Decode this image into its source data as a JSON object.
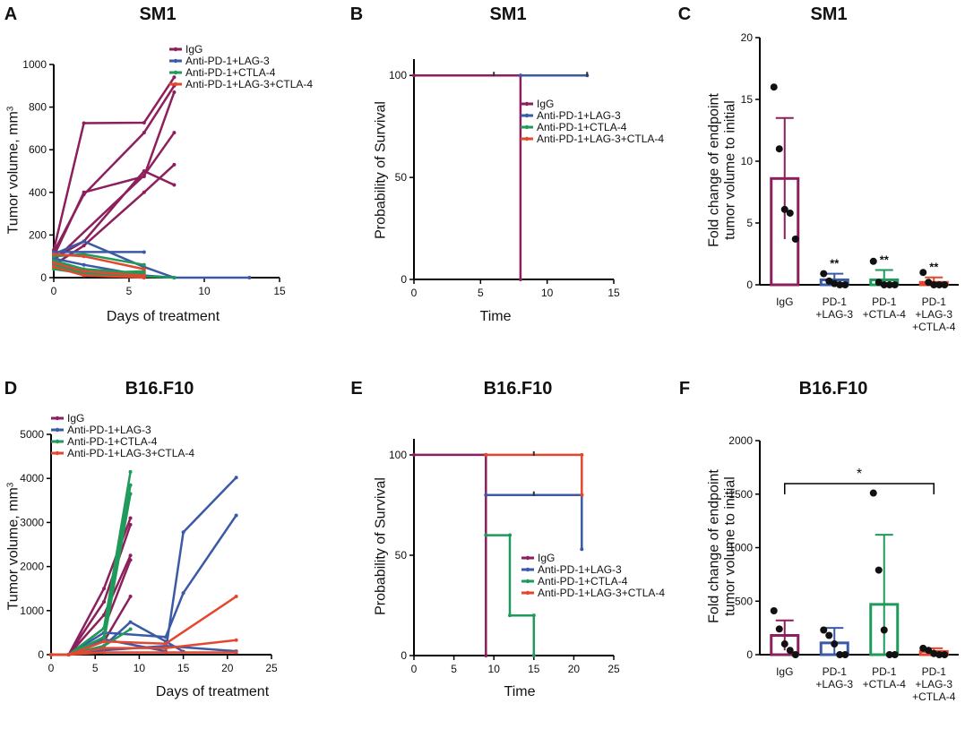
{
  "colors": {
    "igg": "#8c1f5c",
    "lag3": "#3b5aa6",
    "ctla4": "#1f9a5b",
    "combo": "#e4472f",
    "axis": "#000000"
  },
  "legend_labels": [
    "IgG",
    "Anti-PD-1+LAG-3",
    "Anti-PD-1+CTLA-4",
    "Anti-PD-1+LAG-3+CTLA-4"
  ],
  "chart_data": [
    {
      "id": "A",
      "letter": "A",
      "type": "line",
      "title": "SM1",
      "xlabel": "Days of treatment",
      "ylabel": "Tumor volume, mm",
      "ylabel_sup": "3",
      "xlim": [
        0,
        15
      ],
      "ylim": [
        0,
        1000
      ],
      "xticks": [
        0,
        5,
        10,
        15
      ],
      "yticks": [
        0,
        200,
        400,
        600,
        800,
        1000
      ],
      "series": [
        {
          "name": "IgG",
          "color_key": "igg",
          "lines": [
            [
              [
                0,
                130
              ],
              [
                2,
                725
              ],
              [
                6,
                727
              ],
              [
                8,
                940
              ]
            ],
            [
              [
                0,
                120
              ],
              [
                2,
                390
              ],
              [
                6,
                680
              ],
              [
                8,
                900
              ]
            ],
            [
              [
                0,
                100
              ],
              [
                2,
                400
              ],
              [
                6,
                475
              ],
              [
                8,
                870
              ]
            ],
            [
              [
                0,
                90
              ],
              [
                2,
                170
              ],
              [
                6,
                500
              ],
              [
                8,
                435
              ]
            ],
            [
              [
                0,
                60
              ],
              [
                2,
                150
              ],
              [
                6,
                400
              ],
              [
                8,
                530
              ]
            ],
            [
              [
                0,
                80
              ],
              [
                6,
                480
              ],
              [
                8,
                680
              ]
            ]
          ]
        },
        {
          "name": "Anti-PD-1+LAG-3",
          "color_key": "lag3",
          "lines": [
            [
              [
                0,
                120
              ],
              [
                6,
                120
              ]
            ],
            [
              [
                0,
                110
              ],
              [
                2,
                170
              ],
              [
                6,
                50
              ],
              [
                8,
                0
              ],
              [
                13,
                0
              ]
            ],
            [
              [
                0,
                90
              ],
              [
                2,
                60
              ],
              [
                6,
                10
              ],
              [
                8,
                0
              ]
            ],
            [
              [
                0,
                70
              ],
              [
                2,
                30
              ],
              [
                6,
                0
              ]
            ]
          ]
        },
        {
          "name": "Anti-PD-1+CTLA-4",
          "color_key": "ctla4",
          "lines": [
            [
              [
                0,
                100
              ],
              [
                2,
                110
              ],
              [
                6,
                60
              ]
            ],
            [
              [
                0,
                80
              ],
              [
                2,
                40
              ],
              [
                6,
                20
              ]
            ],
            [
              [
                0,
                60
              ],
              [
                2,
                20
              ],
              [
                6,
                5
              ],
              [
                8,
                0
              ]
            ],
            [
              [
                0,
                40
              ],
              [
                2,
                20
              ],
              [
                6,
                30
              ]
            ]
          ]
        },
        {
          "name": "Anti-PD-1+LAG-3+CTLA-4",
          "color_key": "combo",
          "lines": [
            [
              [
                0,
                110
              ],
              [
                2,
                100
              ],
              [
                6,
                40
              ]
            ],
            [
              [
                0,
                70
              ],
              [
                2,
                30
              ],
              [
                6,
                10
              ]
            ],
            [
              [
                0,
                50
              ],
              [
                2,
                10
              ],
              [
                6,
                0
              ]
            ]
          ]
        }
      ]
    },
    {
      "id": "B",
      "letter": "B",
      "type": "line",
      "title": "SM1",
      "xlabel": "Time",
      "ylabel": "Probability of Survival",
      "xlim": [
        0,
        15
      ],
      "ylim": [
        0,
        108
      ],
      "xticks": [
        0,
        5,
        10,
        15
      ],
      "yticks": [
        0,
        50,
        100
      ],
      "series": [
        {
          "name": "IgG",
          "color_key": "igg",
          "lines": [
            [
              [
                0,
                100
              ],
              [
                8,
                100
              ],
              [
                8,
                0
              ]
            ]
          ],
          "censor": []
        },
        {
          "name": "Anti-PD-1+LAG-3",
          "color_key": "lag3",
          "lines": [
            [
              [
                8,
                100
              ],
              [
                13,
                100
              ]
            ]
          ],
          "censor": [
            [
              6,
              100
            ],
            [
              13,
              100
            ]
          ]
        },
        {
          "name": "Anti-PD-1+CTLA-4",
          "color_key": "ctla4",
          "lines": [],
          "censor": []
        },
        {
          "name": "Anti-PD-1+LAG-3+CTLA-4",
          "color_key": "combo",
          "lines": [],
          "censor": []
        }
      ]
    },
    {
      "id": "C",
      "letter": "C",
      "type": "bar",
      "title": "SM1",
      "ylabel_lines": [
        "Fold change of endpoint",
        "tumor volume to initial"
      ],
      "ylim": [
        0,
        20
      ],
      "yticks": [
        0,
        5,
        10,
        15,
        20
      ],
      "categories": [
        [
          "IgG"
        ],
        [
          "PD-1",
          "+LAG-3"
        ],
        [
          "PD-1",
          "+CTLA-4"
        ],
        [
          "PD-1",
          "+LAG-3",
          "+CTLA-4"
        ]
      ],
      "color_keys": [
        "igg",
        "lag3",
        "ctla4",
        "combo"
      ],
      "means": [
        8.6,
        0.4,
        0.4,
        0.2
      ],
      "errors": [
        4.9,
        0.5,
        0.8,
        0.4
      ],
      "points": [
        [
          16,
          11,
          6.1,
          5.8,
          3.7
        ],
        [
          0.9,
          0.3,
          0.1,
          0,
          0
        ],
        [
          1.9,
          0.2,
          0,
          0,
          0
        ],
        [
          1.0,
          0.2,
          0,
          0,
          0
        ]
      ],
      "annotations": [
        "",
        "**",
        "**",
        "**"
      ]
    },
    {
      "id": "D",
      "letter": "D",
      "type": "line",
      "title": "B16.F10",
      "xlabel": "Days of treatment",
      "ylabel": "Tumor volume, mm",
      "ylabel_sup": "3",
      "xlim": [
        0,
        25
      ],
      "ylim": [
        0,
        5000
      ],
      "xticks": [
        0,
        5,
        10,
        15,
        20,
        25
      ],
      "yticks": [
        0,
        1000,
        2000,
        3000,
        4000,
        5000
      ],
      "series": [
        {
          "name": "IgG",
          "color_key": "igg",
          "lines": [
            [
              [
                0,
                0
              ],
              [
                2,
                0
              ],
              [
                6,
                1500
              ],
              [
                9,
                3100
              ]
            ],
            [
              [
                0,
                0
              ],
              [
                2,
                0
              ],
              [
                6,
                1200
              ],
              [
                9,
                2950
              ]
            ],
            [
              [
                0,
                0
              ],
              [
                2,
                0
              ],
              [
                6,
                900
              ],
              [
                9,
                2250
              ]
            ],
            [
              [
                0,
                0
              ],
              [
                2,
                0
              ],
              [
                6,
                600
              ],
              [
                9,
                2150
              ]
            ],
            [
              [
                0,
                0
              ],
              [
                2,
                0
              ],
              [
                6,
                300
              ],
              [
                9,
                1320
              ]
            ]
          ]
        },
        {
          "name": "Anti-PD-1+LAG-3",
          "color_key": "lag3",
          "lines": [
            [
              [
                0,
                0
              ],
              [
                2,
                0
              ],
              [
                6,
                350
              ],
              [
                13,
                80
              ],
              [
                15,
                2780
              ],
              [
                21,
                4020
              ]
            ],
            [
              [
                0,
                0
              ],
              [
                2,
                0
              ],
              [
                6,
                500
              ],
              [
                13,
                400
              ],
              [
                15,
                1400
              ],
              [
                21,
                3160
              ]
            ],
            [
              [
                0,
                0
              ],
              [
                2,
                0
              ],
              [
                6,
                200
              ],
              [
                9,
                740
              ],
              [
                13,
                300
              ],
              [
                15,
                70
              ]
            ],
            [
              [
                0,
                0
              ],
              [
                2,
                0
              ],
              [
                6,
                100
              ],
              [
                13,
                200
              ],
              [
                21,
                80
              ]
            ]
          ]
        },
        {
          "name": "Anti-PD-1+CTLA-4",
          "color_key": "ctla4",
          "lines": [
            [
              [
                0,
                0
              ],
              [
                2,
                0
              ],
              [
                6,
                600
              ],
              [
                9,
                4150
              ]
            ],
            [
              [
                0,
                0
              ],
              [
                2,
                0
              ],
              [
                6,
                400
              ],
              [
                9,
                3850
              ]
            ],
            [
              [
                0,
                0
              ],
              [
                2,
                0
              ],
              [
                6,
                300
              ],
              [
                9,
                3650
              ]
            ],
            [
              [
                0,
                0
              ],
              [
                2,
                0
              ],
              [
                6,
                200
              ],
              [
                9,
                580
              ]
            ]
          ]
        },
        {
          "name": "Anti-PD-1+LAG-3+CTLA-4",
          "color_key": "combo",
          "lines": [
            [
              [
                0,
                0
              ],
              [
                2,
                0
              ],
              [
                6,
                300
              ],
              [
                13,
                250
              ],
              [
                21,
                1320
              ]
            ],
            [
              [
                0,
                0
              ],
              [
                2,
                0
              ],
              [
                6,
                150
              ],
              [
                13,
                150
              ],
              [
                21,
                330
              ]
            ],
            [
              [
                0,
                0
              ],
              [
                2,
                0
              ],
              [
                6,
                50
              ],
              [
                13,
                50
              ],
              [
                21,
                50
              ]
            ]
          ]
        }
      ]
    },
    {
      "id": "E",
      "letter": "E",
      "type": "line",
      "title": "B16.F10",
      "xlabel": "Time",
      "ylabel": "Probability of Survival",
      "xlim": [
        0,
        25
      ],
      "ylim": [
        0,
        108
      ],
      "xticks": [
        0,
        5,
        10,
        15,
        20,
        25
      ],
      "yticks": [
        0,
        50,
        100
      ],
      "series": [
        {
          "name": "IgG",
          "color_key": "igg",
          "lines": [
            [
              [
                0,
                100
              ],
              [
                9,
                100
              ],
              [
                9,
                0
              ]
            ]
          ],
          "censor": []
        },
        {
          "name": "Anti-PD-1+LAG-3",
          "color_key": "lag3",
          "lines": [
            [
              [
                9,
                80
              ],
              [
                21,
                80
              ],
              [
                21,
                53
              ]
            ]
          ],
          "censor": [
            [
              15,
              80
            ]
          ]
        },
        {
          "name": "Anti-PD-1+CTLA-4",
          "color_key": "ctla4",
          "lines": [
            [
              [
                9,
                60
              ],
              [
                12,
                60
              ],
              [
                12,
                20
              ],
              [
                15,
                20
              ],
              [
                15,
                0
              ]
            ]
          ],
          "censor": []
        },
        {
          "name": "Anti-PD-1+LAG-3+CTLA-4",
          "color_key": "combo",
          "lines": [
            [
              [
                9,
                100
              ],
              [
                21,
                100
              ],
              [
                21,
                80
              ]
            ]
          ],
          "censor": [
            [
              15,
              100
            ]
          ]
        }
      ]
    },
    {
      "id": "F",
      "letter": "F",
      "type": "bar",
      "title": "B16.F10",
      "ylabel_lines": [
        "Fold change of endpoint",
        "tumor volume to initial"
      ],
      "ylim": [
        0,
        2000
      ],
      "yticks": [
        0,
        500,
        1000,
        1500,
        2000
      ],
      "categories": [
        [
          "IgG"
        ],
        [
          "PD-1",
          "+LAG-3"
        ],
        [
          "PD-1",
          "+CTLA-4"
        ],
        [
          "PD-1",
          "+LAG-3",
          "+CTLA-4"
        ]
      ],
      "color_keys": [
        "igg",
        "lag3",
        "ctla4",
        "combo"
      ],
      "means": [
        180,
        110,
        470,
        30
      ],
      "errors": [
        140,
        140,
        650,
        30
      ],
      "points": [
        [
          410,
          240,
          100,
          40,
          0
        ],
        [
          230,
          180,
          100,
          0,
          0
        ],
        [
          1510,
          790,
          230,
          0,
          0
        ],
        [
          60,
          40,
          10,
          0,
          0
        ]
      ],
      "annotations": [
        "",
        "",
        "",
        ""
      ],
      "significance": {
        "from": 0,
        "to": 3,
        "label": "*"
      }
    }
  ]
}
